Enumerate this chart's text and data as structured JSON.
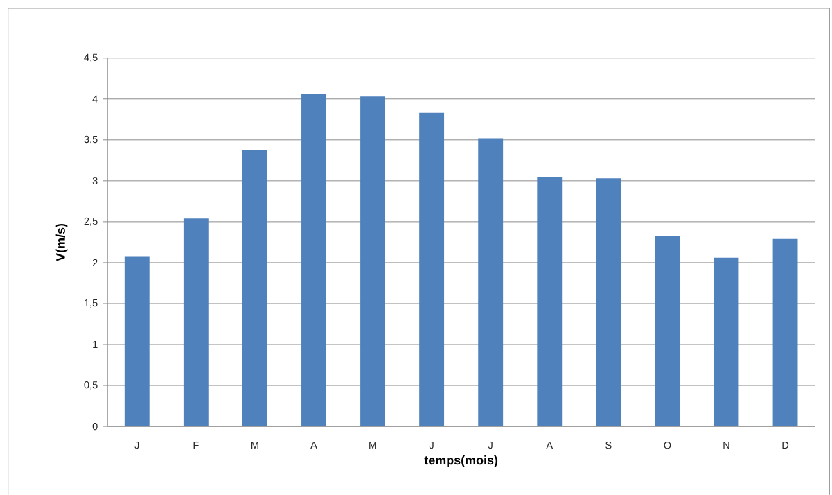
{
  "chart_data": {
    "type": "bar",
    "categories": [
      "J",
      "F",
      "M",
      "A",
      "M",
      "J",
      "J",
      "A",
      "S",
      "O",
      "N",
      "D"
    ],
    "values": [
      2.08,
      2.54,
      3.38,
      4.06,
      4.03,
      3.83,
      3.52,
      3.05,
      3.03,
      2.33,
      2.06,
      2.29
    ],
    "color": "#4f81bd",
    "xlabel": "temps(mois)",
    "ylabel": "V(m/s)",
    "ylim": [
      0,
      4.5
    ],
    "yticks": [
      0,
      {
        "value": 0.5,
        "label": "0,5"
      },
      1,
      {
        "value": 1.5,
        "label": "1,5"
      },
      2,
      {
        "value": 2.5,
        "label": "2,5"
      },
      3,
      {
        "value": 3.5,
        "label": "3,5"
      },
      4,
      {
        "value": 4.5,
        "label": "4,5"
      }
    ],
    "grid": "y"
  }
}
